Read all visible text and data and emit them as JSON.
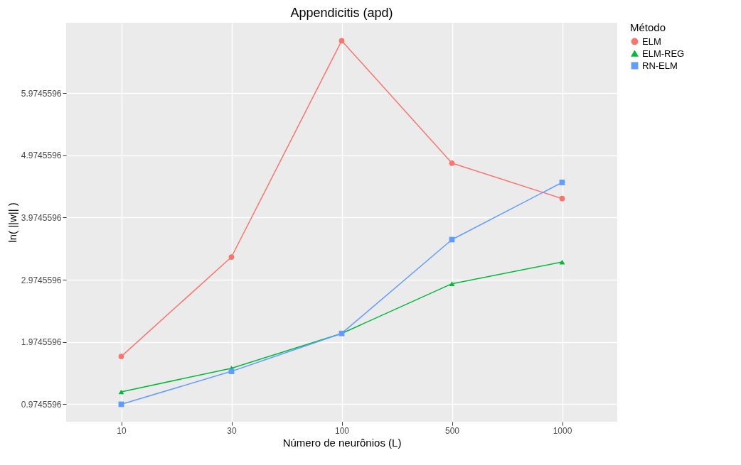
{
  "chart_data": {
    "type": "line",
    "title": "Appendicitis (apd)",
    "xlabel": "Número de neurônios (L)",
    "ylabel": "ln( ||w|| )",
    "legend_title": "Método",
    "categories": [
      "10",
      "30",
      "100",
      "500",
      "1000"
    ],
    "series": [
      {
        "name": "ELM",
        "color": "#f8766d",
        "marker": "circle",
        "values": [
          1.74,
          3.34,
          6.82,
          4.85,
          4.28
        ]
      },
      {
        "name": "ELM-REG",
        "color": "#00ba38",
        "marker": "triangle",
        "values": [
          1.17,
          1.55,
          2.11,
          2.91,
          3.26
        ]
      },
      {
        "name": "RN-ELM",
        "color": "#619cff",
        "marker": "square",
        "values": [
          0.97,
          1.5,
          2.11,
          3.62,
          4.54
        ]
      }
    ],
    "ylim": [
      0.69,
      7.11
    ],
    "yticks": [
      0.9745596,
      1.9745596,
      2.9745596,
      3.9745596,
      4.9745596,
      5.9745596
    ],
    "grid": true,
    "legend": "right",
    "line_style": "solid"
  }
}
